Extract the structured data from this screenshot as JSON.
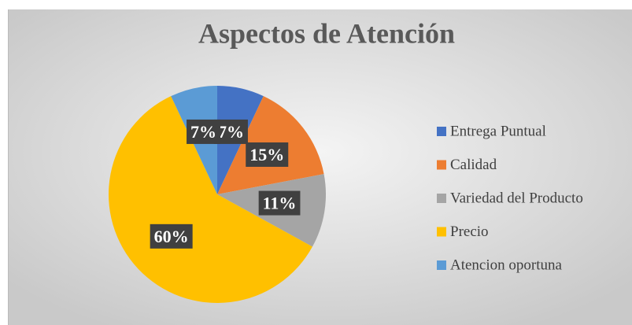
{
  "chart_data": {
    "type": "pie",
    "title": "Aspectos de Atención",
    "categories": [
      "Entrega Puntual",
      "Calidad",
      "Variedad del Producto",
      "Precio",
      "Atencion oportuna"
    ],
    "values": [
      7,
      15,
      11,
      60,
      7
    ],
    "value_labels": [
      "7%",
      "15%",
      "11%",
      "60%",
      "7%"
    ],
    "colors": [
      "#4472c4",
      "#ed7d31",
      "#a5a5a5",
      "#ffc000",
      "#5b9bd5"
    ],
    "legend": "right"
  }
}
